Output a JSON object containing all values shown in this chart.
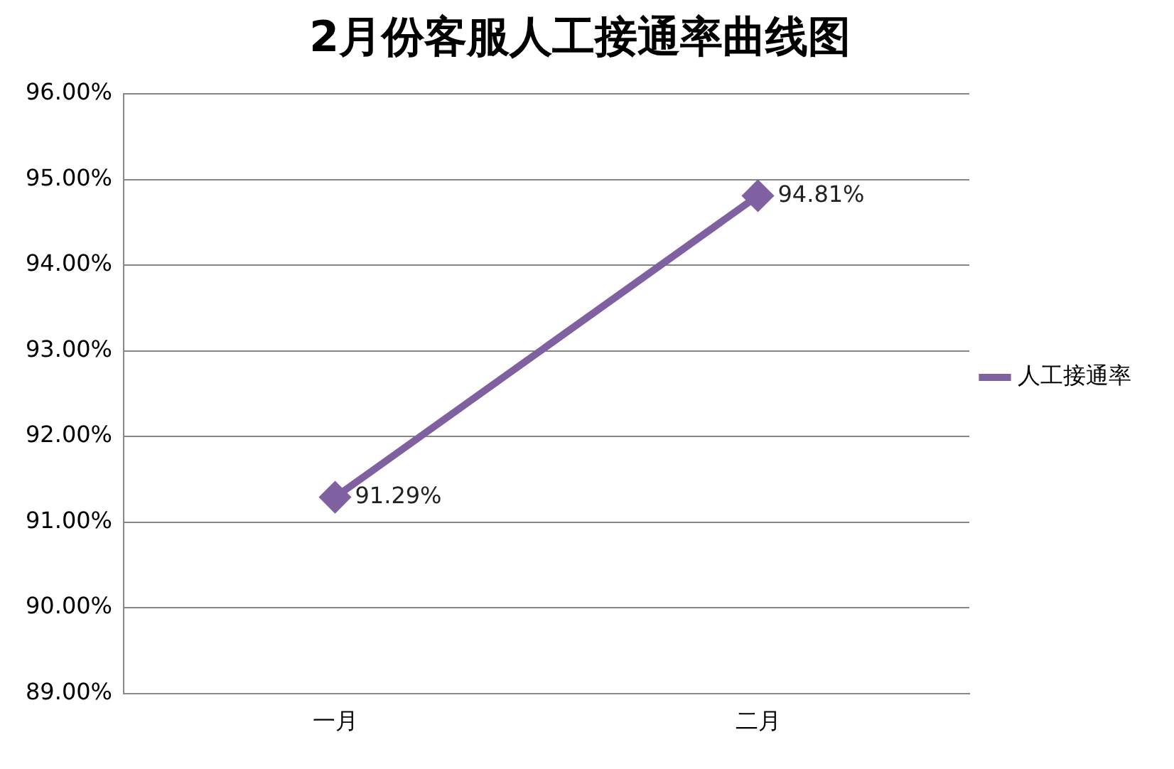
{
  "chart_data": {
    "type": "line",
    "title": "2月份客服人工接通率曲线图",
    "categories": [
      "一月",
      "二月"
    ],
    "series": [
      {
        "name": "人工接通率",
        "color": "#7f60a0",
        "values": [
          91.29,
          94.81
        ],
        "value_labels": [
          "91.29%",
          "94.81%"
        ]
      }
    ],
    "ylim": [
      89,
      96
    ],
    "yticks": [
      {
        "value": 89,
        "label": "89.00%"
      },
      {
        "value": 90,
        "label": "90.00%"
      },
      {
        "value": 91,
        "label": "91.00%"
      },
      {
        "value": 92,
        "label": "92.00%"
      },
      {
        "value": 93,
        "label": "93.00%"
      },
      {
        "value": 94,
        "label": "94.00%"
      },
      {
        "value": 95,
        "label": "95.00%"
      },
      {
        "value": 96,
        "label": "96.00%"
      }
    ],
    "grid": "y",
    "legend": "right",
    "marker": "diamond",
    "line_style": "solid"
  }
}
